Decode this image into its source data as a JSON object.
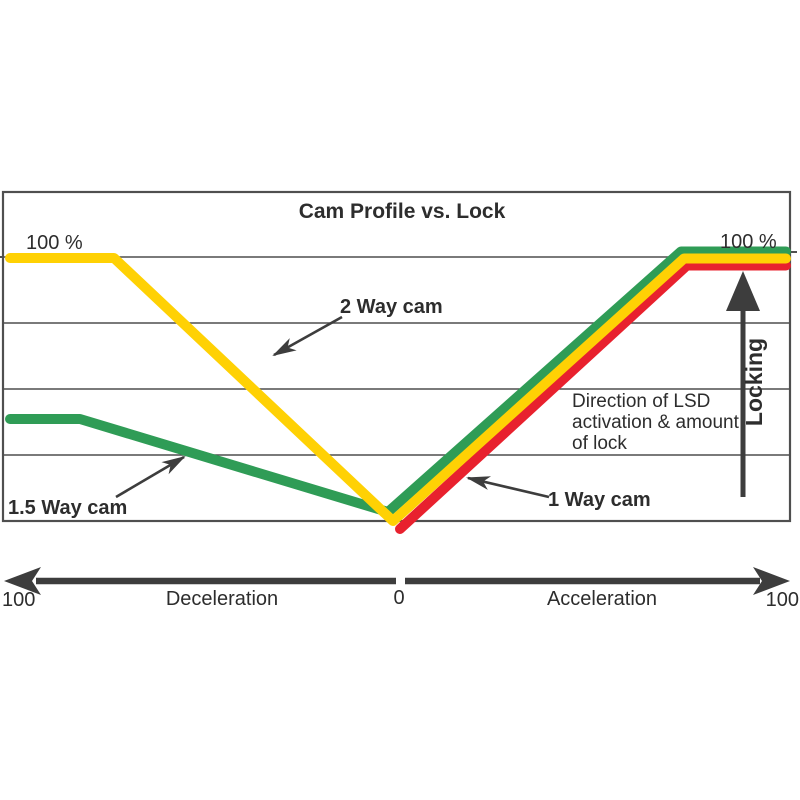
{
  "title": "Cam Profile vs. Lock",
  "labels": {
    "pct_left": "100 %",
    "pct_right": "100 %",
    "cam_2way": "2 Way cam",
    "cam_15way": "1.5 Way cam",
    "cam_1way": "1 Way cam",
    "note_line1": "Direction of LSD",
    "note_line2": "activation & amount",
    "note_line3": "of lock",
    "locking": "Locking",
    "axis_left_100": "100",
    "axis_deceleration": "Deceleration",
    "axis_zero": "0",
    "axis_acceleration": "Acceleration",
    "axis_right_100": "100"
  },
  "colors": {
    "yellow_2way": "#FFD104",
    "green_15way": "#2F9C56",
    "red_1way": "#E8212E",
    "ink": "#3d3d3d",
    "grid": "#4f4f4f"
  },
  "chart_data": {
    "type": "line",
    "title": "Cam Profile vs. Lock",
    "xlabel_left": "Deceleration",
    "xlabel_right": "Acceleration",
    "x_ticks": [
      "100",
      "0",
      "100"
    ],
    "x_range_pct": [
      -100,
      100
    ],
    "ylabel": "Locking",
    "y_top_labels": [
      "100 %",
      "100 %"
    ],
    "ylim_pct": [
      0,
      100
    ],
    "grid": "horizontal, 4 interior gridlines (20% steps)",
    "legend_position": "inline annotations with pointer arrows",
    "annotation_note": "Direction of LSD activation & amount of lock",
    "series": [
      {
        "name": "1.5 Way cam",
        "color": "#2F9C56",
        "values_pct": [
          [
            -100,
            39
          ],
          [
            -82,
            39
          ],
          [
            -2,
            3
          ],
          [
            73,
            102
          ],
          [
            100,
            102
          ]
        ],
        "px": "10,419 80,419 388,512 681,251.5 786,251.5"
      },
      {
        "name": "1 Way cam",
        "color": "#E8212E",
        "values_pct": [
          [
            0,
            -3
          ],
          [
            73,
            97
          ],
          [
            100,
            97
          ]
        ],
        "px": "400,529 687,265.5 786,265.5"
      },
      {
        "name": "2 Way cam",
        "color": "#FFD104",
        "values_pct": [
          [
            -100,
            100
          ],
          [
            -72,
            100
          ],
          [
            -1,
            0
          ],
          [
            72,
            100
          ],
          [
            100,
            100
          ]
        ],
        "px": "10,258 114,258 393,521 684,258.5 786,258.5"
      }
    ]
  }
}
